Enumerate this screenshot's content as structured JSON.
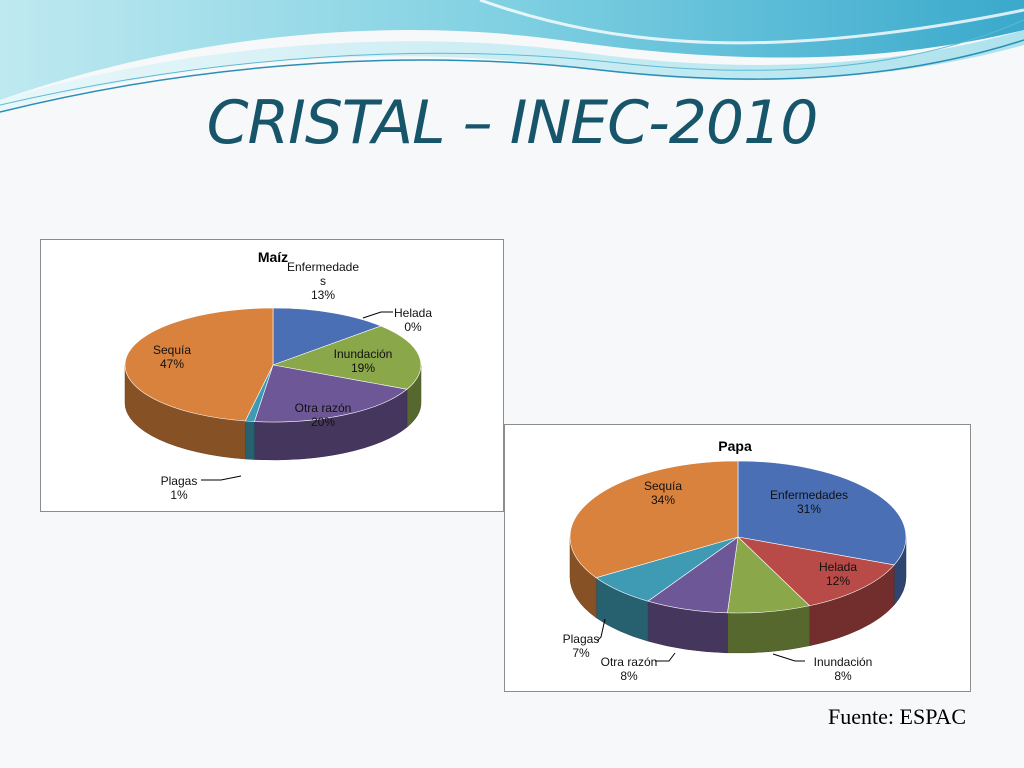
{
  "slide": {
    "title": "CRISTAL – INEC-2010",
    "source": "Fuente: ESPAC"
  },
  "colors": {
    "title": "#17556a",
    "wave_light": "#9fdbe6",
    "wave_mid": "#5fb9d3",
    "wave_dark": "#2a8fb6"
  },
  "chart_data": [
    {
      "type": "pie",
      "title": "Maíz",
      "unit": "%",
      "slices": [
        {
          "label": "Enfermedades",
          "label_lines": [
            "Enfermedade",
            "s"
          ],
          "value": 13,
          "value_text": "13%",
          "color": "#4a6fb5"
        },
        {
          "label": "Helada",
          "label_lines": [
            "Helada"
          ],
          "value": 0,
          "value_text": "0%",
          "color": "#b84a47"
        },
        {
          "label": "Inundación",
          "label_lines": [
            "Inundación"
          ],
          "value": 19,
          "value_text": "19%",
          "color": "#8aa74a"
        },
        {
          "label": "Otra razón",
          "label_lines": [
            "Otra razón"
          ],
          "value": 20,
          "value_text": "20%",
          "color": "#6e5796"
        },
        {
          "label": "Plagas",
          "label_lines": [
            "Plagas"
          ],
          "value": 1,
          "value_text": "1%",
          "color": "#3f9bb3"
        },
        {
          "label": "Sequía",
          "label_lines": [
            "Sequía"
          ],
          "value": 47,
          "value_text": "47%",
          "color": "#d9823e"
        }
      ]
    },
    {
      "type": "pie",
      "title": "Papa",
      "unit": "%",
      "slices": [
        {
          "label": "Enfermedades",
          "label_lines": [
            "Enfermedades"
          ],
          "value": 31,
          "value_text": "31%",
          "color": "#4a6fb5"
        },
        {
          "label": "Helada",
          "label_lines": [
            "Helada"
          ],
          "value": 12,
          "value_text": "12%",
          "color": "#b84a47"
        },
        {
          "label": "Inundación",
          "label_lines": [
            "Inundación"
          ],
          "value": 8,
          "value_text": "8%",
          "color": "#8aa74a"
        },
        {
          "label": "Otra razón",
          "label_lines": [
            "Otra razón"
          ],
          "value": 8,
          "value_text": "8%",
          "color": "#6e5796"
        },
        {
          "label": "Plagas",
          "label_lines": [
            "Plagas"
          ],
          "value": 7,
          "value_text": "7%",
          "color": "#3f9bb3"
        },
        {
          "label": "Sequía",
          "label_lines": [
            "Sequía"
          ],
          "value": 34,
          "value_text": "34%",
          "color": "#d9823e"
        }
      ]
    }
  ]
}
